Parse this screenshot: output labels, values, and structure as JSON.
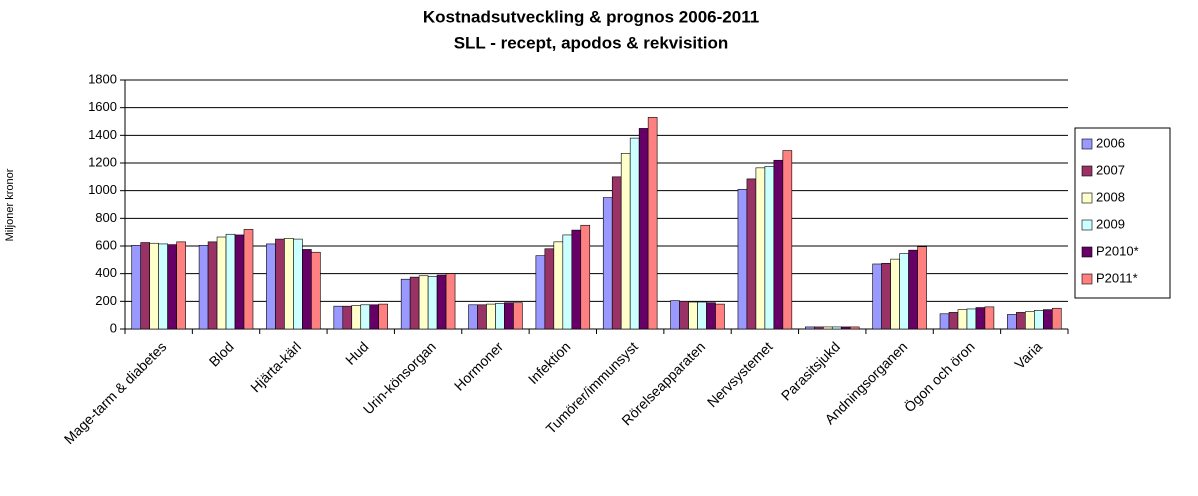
{
  "chart_data": {
    "type": "bar",
    "title": "Kostnadsutveckling & prognos 2006-2011",
    "subtitle": "SLL - recept, apodos & rekvisition",
    "y_label": "Miljoner kronor",
    "categories": [
      "Mage-tarm & diabetes",
      "Blod",
      "Hjärta-kärl",
      "Hud",
      "Urin-könsorgan",
      "Hormoner",
      "Infektion",
      "Tumörer/immunsyst",
      "Rörelseapparaten",
      "Nervsystemet",
      "Parasitsjukd",
      "Andningsorganen",
      "Ögon och öron",
      "Varia"
    ],
    "series": [
      {
        "name": "2006",
        "color": "#9999ff",
        "values": [
          605,
          605,
          615,
          165,
          360,
          175,
          530,
          950,
          205,
          1010,
          15,
          470,
          110,
          105
        ]
      },
      {
        "name": "2007",
        "color": "#993366",
        "values": [
          625,
          630,
          650,
          165,
          375,
          175,
          580,
          1100,
          200,
          1085,
          15,
          475,
          120,
          120
        ]
      },
      {
        "name": "2008",
        "color": "#ffffcc",
        "values": [
          620,
          665,
          655,
          170,
          385,
          180,
          630,
          1270,
          195,
          1165,
          15,
          505,
          140,
          125
        ]
      },
      {
        "name": "2009",
        "color": "#ccffff",
        "values": [
          615,
          685,
          650,
          175,
          380,
          185,
          680,
          1380,
          195,
          1175,
          15,
          545,
          145,
          135
        ]
      },
      {
        "name": "P2010*",
        "color": "#660066",
        "values": [
          610,
          680,
          575,
          175,
          390,
          190,
          715,
          1450,
          190,
          1220,
          15,
          570,
          155,
          140
        ]
      },
      {
        "name": "P2011*",
        "color": "#ff8080",
        "values": [
          630,
          720,
          555,
          180,
          400,
          190,
          750,
          1530,
          180,
          1290,
          15,
          595,
          160,
          150
        ]
      }
    ],
    "ylim": [
      0,
      1800
    ],
    "yticks": [
      0,
      200,
      400,
      600,
      800,
      1000,
      1200,
      1400,
      1600,
      1800
    ],
    "grid": true,
    "legend": "right"
  }
}
